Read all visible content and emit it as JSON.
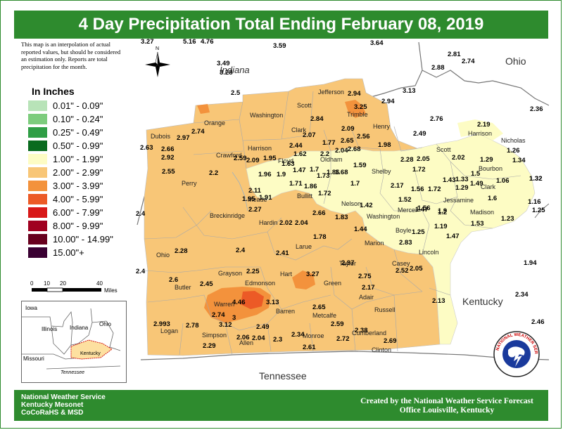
{
  "title": "4 Day Precipitation Total Ending February 08, 2019",
  "disclaimer": "This map is an interpolation of actual reported values, but should be considered an estimation only. Reports are total precipitation for the month.",
  "legend": {
    "title": "In Inches",
    "items": [
      {
        "label": "0.01\" - 0.09\"",
        "color": "#b8e3b8"
      },
      {
        "label": "0.10\" - 0.24\"",
        "color": "#7dcc7d"
      },
      {
        "label": "0.25\" - 0.49\"",
        "color": "#2f9e45"
      },
      {
        "label": "0.50\" - 0.99\"",
        "color": "#0a6b1f"
      },
      {
        "label": "1.00\" - 1.99\"",
        "color": "#fdfcc4"
      },
      {
        "label": "2.00\" - 2.99\"",
        "color": "#f8c677"
      },
      {
        "label": "3.00\" - 3.99\"",
        "color": "#f3923c"
      },
      {
        "label": "4.00\" - 5.99\"",
        "color": "#ec5a26"
      },
      {
        "label": "6.00\" - 7.99\"",
        "color": "#d81818"
      },
      {
        "label": "8.00\" - 9.99\"",
        "color": "#a00020"
      },
      {
        "label": "10.00\" - 14.99\"",
        "color": "#68001e"
      },
      {
        "label": "15.00\"+",
        "color": "#3a0032"
      }
    ]
  },
  "scale": {
    "ticks": [
      "0",
      "10",
      "20",
      "40"
    ],
    "unit": "Miles"
  },
  "compass": "N",
  "inset_labels": [
    "Iowa",
    "Illinois",
    "Indiana",
    "Ohio",
    "Missouri",
    "Kentucky",
    "Tennessee"
  ],
  "state_labels": {
    "indiana": "Indiana",
    "ohio": "Ohio",
    "kentucky": "Kentucky",
    "tennessee": "Tennessee"
  },
  "counties": [
    "Jefferson",
    "Scott",
    "Washington",
    "Orange",
    "Clark",
    "Trimble",
    "Henry",
    "Harrison",
    "Nicholas",
    "Dubois",
    "Crawford",
    "Harrison",
    "Floyd",
    "Scott",
    "Bourbon",
    "Clark",
    "Perry",
    "Oldham",
    "Shelby",
    "Jessamine",
    "Meade",
    "Bullitt",
    "Nelson",
    "Mercer",
    "Madison",
    "Breckinridge",
    "Hardin",
    "Washington",
    "Boyle",
    "Ohio",
    "Grayson",
    "Larue",
    "Marion",
    "Lincoln",
    "Taylor",
    "Casey",
    "Butler",
    "Edmonson",
    "Hart",
    "Green",
    "Adair",
    "Warren",
    "Barren",
    "Metcalfe",
    "Russell",
    "Logan",
    "Simpson",
    "Allen",
    "Monroe",
    "Cumberland",
    "Clinton"
  ],
  "values": [
    "3.27",
    "5.16",
    "4.76",
    "3.59",
    "3.64",
    "3.49",
    "3.28",
    "2.5",
    "3.13",
    "2.81",
    "2.74",
    "2.88",
    "2.36",
    "2.94",
    "2.94",
    "3.25",
    "2.84",
    "2.76",
    "2.09",
    "2.56",
    "2.49",
    "2.19",
    "2.63",
    "2.66",
    "2.97",
    "2.74",
    "2.92",
    "1.95",
    "2.09",
    "2.44",
    "2.07",
    "1.77",
    "2.65",
    "1.98",
    "2.05",
    "1.26",
    "1.29",
    "1.34",
    "2.55",
    "2.2",
    "2.59",
    "1.63",
    "1.62",
    "2.2",
    "2.04",
    "2.68",
    "2.28",
    "1.72",
    "2.02",
    "1.5",
    "1.32",
    "1.96",
    "1.9",
    "1.47",
    "1.7",
    "1.86",
    "1.68",
    "1.59",
    "1.43",
    "1.33",
    "1.49",
    "1.06",
    "2.11",
    "1.71",
    "1.86",
    "1.73",
    "1.7",
    "2.17",
    "1.56",
    "1.72",
    "1.29",
    "1.6",
    "1.16",
    "1.25",
    "1.91",
    "1.95",
    "2.27",
    "1.72",
    "1.42",
    "1.52",
    "1.56",
    "1.2",
    "2.66",
    "1.83",
    "1.47",
    "1.9",
    "1.53",
    "1.23",
    "2.02",
    "2.04",
    "1.44",
    "1.25",
    "1.19",
    "1.78",
    "1.47",
    "2.28",
    "2.4",
    "2.41",
    "2.83",
    "2.97",
    "2.75",
    "2.52",
    "2.05",
    "1.94",
    "2.25",
    "3.27",
    "2.6",
    "2.45",
    "2.17",
    "4.46",
    "3.13",
    "2.74",
    "3",
    "3.12",
    "2.65",
    "2.13",
    "2.34",
    "2.993",
    "2.78",
    "2.49",
    "2.59",
    "2.38",
    "2.46",
    "2.29",
    "2.06",
    "2.04",
    "2.3",
    "2.34",
    "2.72",
    "2.69",
    "2.61",
    "2.4",
    "2.4",
    "1.32"
  ],
  "footer": {
    "left": [
      "National Weather Service",
      "Kentucky Mesonet",
      "CoCoRaHS & MSD"
    ],
    "right": [
      "Created by the National Weather Service Forecast",
      "Office Louisville, Kentucky"
    ]
  },
  "logo_text": "NATIONAL WEATHER SERVICE"
}
